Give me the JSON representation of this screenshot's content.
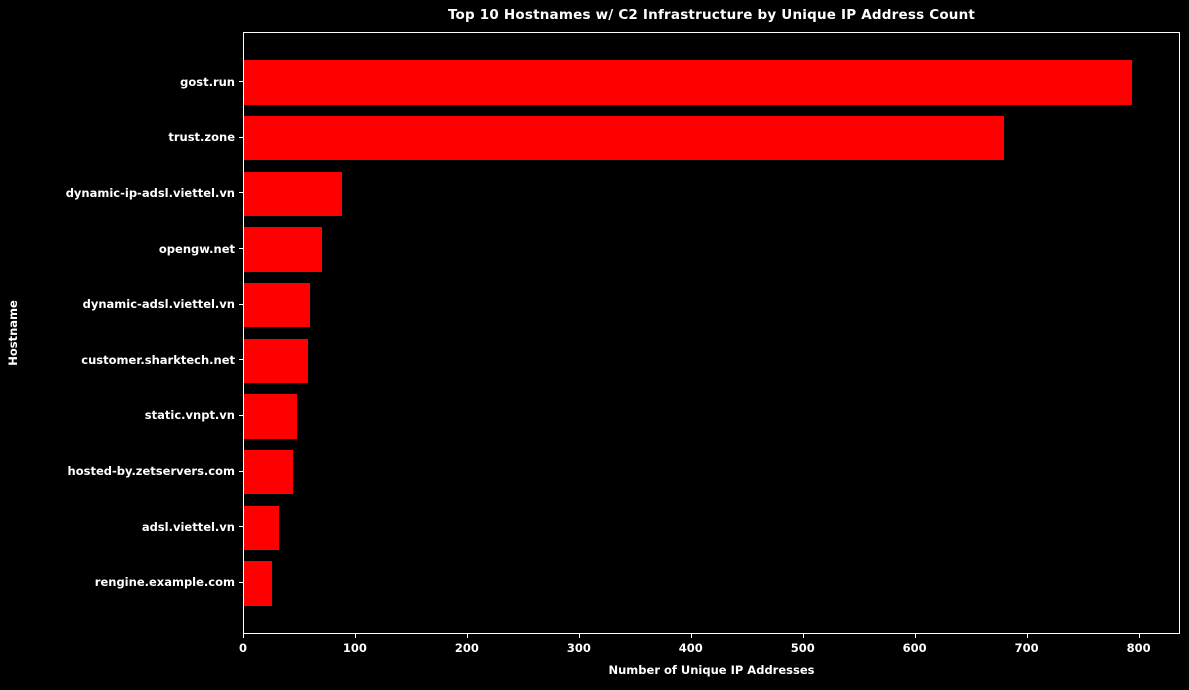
{
  "chart_data": {
    "type": "bar",
    "orientation": "horizontal",
    "title": "Top 10 Hostnames w/ C2 Infrastructure by Unique IP Address Count",
    "xlabel": "Number of Unique IP Addresses",
    "ylabel": "Hostname",
    "categories": [
      "gost.run",
      "trust.zone",
      "dynamic-ip-adsl.viettel.vn",
      "opengw.net",
      "dynamic-adsl.viettel.vn",
      "customer.sharktech.net",
      "static.vnpt.vn",
      "hosted-by.zetservers.com",
      "adsl.viettel.vn",
      "rengine.example.com"
    ],
    "values": [
      795,
      680,
      88,
      70,
      59,
      57,
      47,
      44,
      31,
      25
    ],
    "xlim": [
      0,
      837
    ],
    "xticks": [
      0,
      100,
      200,
      300,
      400,
      500,
      600,
      700,
      800
    ],
    "grid": false,
    "legend": null,
    "colors": {
      "background": "#000000",
      "bar": "#ff0000",
      "text": "#ffffff",
      "spine": "#ffffff"
    }
  }
}
